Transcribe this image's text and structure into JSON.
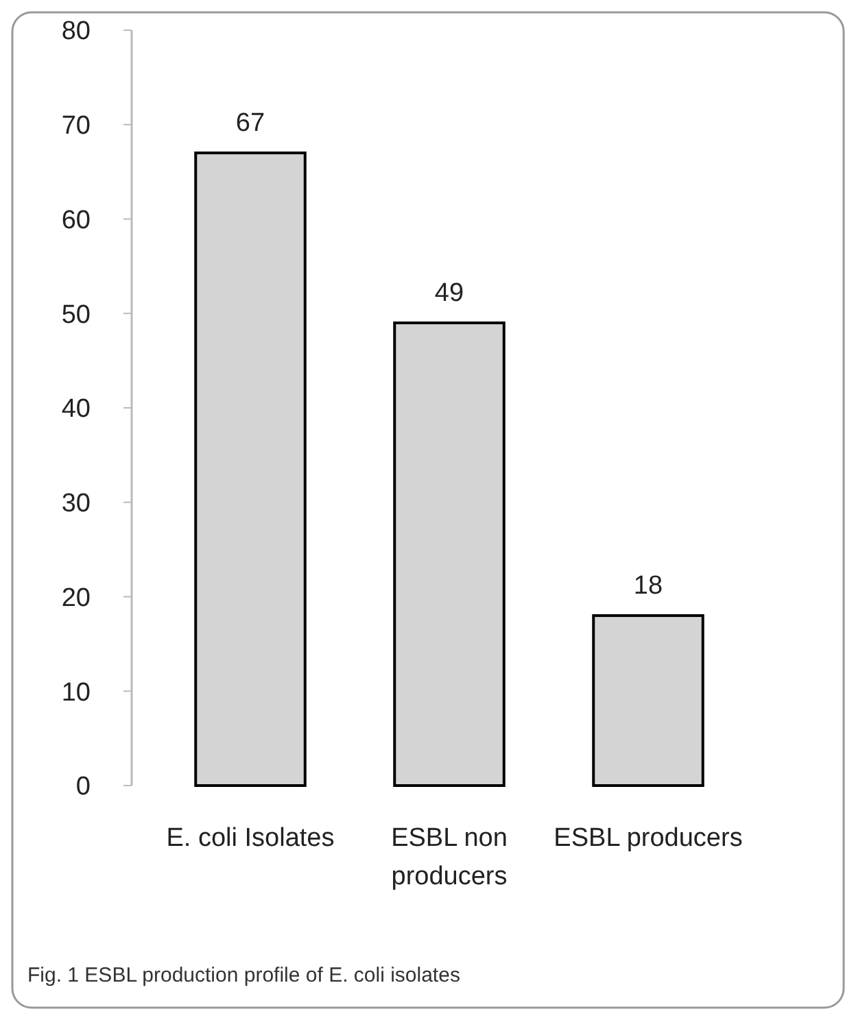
{
  "chart_data": {
    "type": "bar",
    "categories": [
      "E. coli Isolates",
      "ESBL non producers",
      "ESBL producers"
    ],
    "values": [
      67,
      49,
      18
    ],
    "color": "#d4d4d4",
    "ylim": [
      0,
      80
    ],
    "yticks": [
      0,
      10,
      20,
      30,
      40,
      50,
      60,
      70,
      80
    ],
    "data_labels": true,
    "annotations": [
      "Fig. 1 ESBL production profile of E. coli isolates"
    ]
  }
}
